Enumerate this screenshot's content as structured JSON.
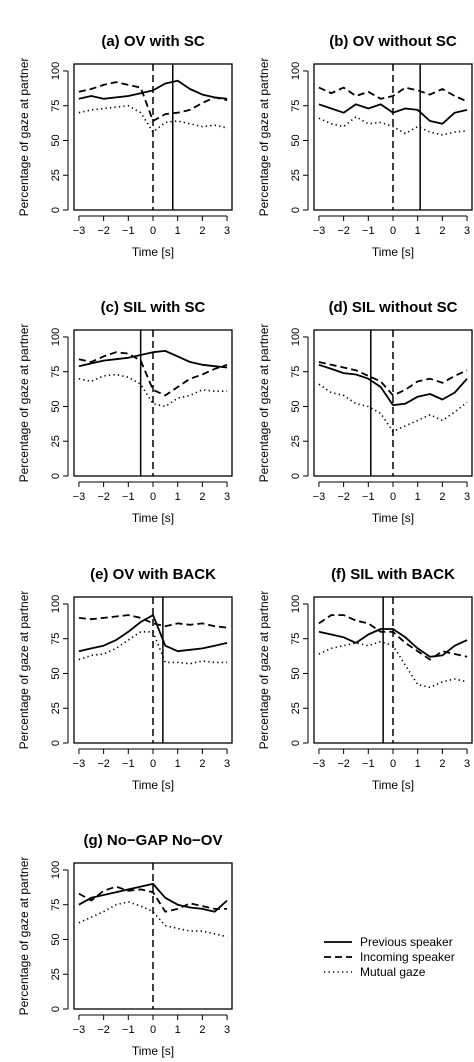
{
  "legend": [
    {
      "label": "Previous speaker",
      "style": "solid"
    },
    {
      "label": "Incoming speaker",
      "style": "dashed"
    },
    {
      "label": "Mutual gaze",
      "style": "dotted"
    }
  ],
  "chart_data": [
    {
      "type": "line",
      "title": "(a) OV with SC",
      "xlabel": "Time [s]",
      "ylabel": "Percentage of gaze at partner",
      "xlim": [
        -3.2,
        3.2
      ],
      "ylim": [
        0,
        105
      ],
      "xticks": [
        -3,
        -2,
        -1,
        0,
        1,
        2,
        3
      ],
      "yticks": [
        0,
        25,
        50,
        75,
        100
      ],
      "event_lines": [
        {
          "x": 0,
          "style": "dashed"
        },
        {
          "x": 0.8,
          "style": "solid"
        }
      ],
      "x": [
        -3,
        -2.5,
        -2,
        -1.5,
        -1,
        -0.5,
        0,
        0.5,
        1,
        1.5,
        2,
        2.5,
        3
      ],
      "series": [
        {
          "name": "Previous speaker",
          "style": "solid",
          "values": [
            80,
            82,
            80,
            81,
            82,
            84,
            86,
            91,
            93,
            87,
            83,
            81,
            80
          ]
        },
        {
          "name": "Incoming speaker",
          "style": "dashed",
          "values": [
            85,
            87,
            90,
            92,
            90,
            88,
            64,
            69,
            70,
            72,
            77,
            81,
            79
          ]
        },
        {
          "name": "Mutual gaze",
          "style": "dotted",
          "values": [
            70,
            72,
            73,
            74,
            75,
            70,
            56,
            63,
            64,
            62,
            60,
            61,
            59
          ]
        }
      ]
    },
    {
      "type": "line",
      "title": "(b) OV without SC",
      "xlabel": "Time [s]",
      "ylabel": "Percentage of gaze at partner",
      "xlim": [
        -3.2,
        3.2
      ],
      "ylim": [
        0,
        105
      ],
      "xticks": [
        -3,
        -2,
        -1,
        0,
        1,
        2,
        3
      ],
      "yticks": [
        0,
        25,
        50,
        75,
        100
      ],
      "event_lines": [
        {
          "x": 0,
          "style": "dashed"
        },
        {
          "x": 1.1,
          "style": "solid"
        }
      ],
      "x": [
        -3,
        -2.5,
        -2,
        -1.5,
        -1,
        -0.5,
        0,
        0.5,
        1,
        1.5,
        2,
        2.5,
        3
      ],
      "series": [
        {
          "name": "Previous speaker",
          "style": "solid",
          "values": [
            76,
            73,
            70,
            76,
            73,
            76,
            70,
            73,
            72,
            64,
            62,
            70,
            72
          ]
        },
        {
          "name": "Incoming speaker",
          "style": "dashed",
          "values": [
            88,
            84,
            88,
            82,
            85,
            80,
            82,
            88,
            86,
            83,
            87,
            82,
            78
          ]
        },
        {
          "name": "Mutual gaze",
          "style": "dotted",
          "values": [
            66,
            62,
            60,
            67,
            62,
            63,
            60,
            55,
            60,
            56,
            54,
            56,
            57
          ]
        }
      ]
    },
    {
      "type": "line",
      "title": "(c) SIL with SC",
      "xlabel": "Time [s]",
      "ylabel": "Percentage of gaze at partner",
      "xlim": [
        -3.2,
        3.2
      ],
      "ylim": [
        0,
        105
      ],
      "xticks": [
        -3,
        -2,
        -1,
        0,
        1,
        2,
        3
      ],
      "yticks": [
        0,
        25,
        50,
        75,
        100
      ],
      "event_lines": [
        {
          "x": -0.5,
          "style": "solid"
        },
        {
          "x": 0,
          "style": "dashed"
        }
      ],
      "x": [
        -3,
        -2.5,
        -2,
        -1.5,
        -1,
        -0.5,
        0,
        0.5,
        1,
        1.5,
        2,
        2.5,
        3
      ],
      "series": [
        {
          "name": "Previous speaker",
          "style": "solid",
          "values": [
            79,
            81,
            83,
            84,
            85,
            87,
            89,
            90,
            86,
            82,
            80,
            79,
            78
          ]
        },
        {
          "name": "Incoming speaker",
          "style": "dashed",
          "values": [
            84,
            82,
            86,
            89,
            88,
            83,
            62,
            58,
            64,
            70,
            73,
            77,
            80
          ]
        },
        {
          "name": "Mutual gaze",
          "style": "dotted",
          "values": [
            70,
            68,
            72,
            73,
            71,
            66,
            52,
            50,
            56,
            58,
            62,
            61,
            61
          ]
        }
      ]
    },
    {
      "type": "line",
      "title": "(d) SIL without SC",
      "xlabel": "Time [s]",
      "ylabel": "Percentage of gaze at partner",
      "xlim": [
        -3.2,
        3.2
      ],
      "ylim": [
        0,
        105
      ],
      "xticks": [
        -3,
        -2,
        -1,
        0,
        1,
        2,
        3
      ],
      "yticks": [
        0,
        25,
        50,
        75,
        100
      ],
      "event_lines": [
        {
          "x": -0.9,
          "style": "solid"
        },
        {
          "x": 0,
          "style": "dashed"
        }
      ],
      "x": [
        -3,
        -2.5,
        -2,
        -1.5,
        -1,
        -0.5,
        0,
        0.5,
        1,
        1.5,
        2,
        2.5,
        3
      ],
      "series": [
        {
          "name": "Previous speaker",
          "style": "solid",
          "values": [
            80,
            77,
            74,
            73,
            70,
            64,
            51,
            52,
            57,
            59,
            55,
            60,
            70
          ]
        },
        {
          "name": "Incoming speaker",
          "style": "dashed",
          "values": [
            82,
            80,
            78,
            76,
            72,
            68,
            58,
            62,
            68,
            70,
            67,
            72,
            76
          ]
        },
        {
          "name": "Mutual gaze",
          "style": "dotted",
          "values": [
            66,
            60,
            58,
            52,
            50,
            45,
            32,
            36,
            40,
            44,
            40,
            46,
            53
          ]
        }
      ]
    },
    {
      "type": "line",
      "title": "(e) OV with BACK",
      "xlabel": "Time [s]",
      "ylabel": "Percentage of gaze at partner",
      "xlim": [
        -3.2,
        3.2
      ],
      "ylim": [
        0,
        105
      ],
      "xticks": [
        -3,
        -2,
        -1,
        0,
        1,
        2,
        3
      ],
      "yticks": [
        0,
        25,
        50,
        75,
        100
      ],
      "event_lines": [
        {
          "x": 0,
          "style": "dashed"
        },
        {
          "x": 0.4,
          "style": "solid"
        }
      ],
      "x": [
        -3,
        -2.5,
        -2,
        -1.5,
        -1,
        -0.5,
        0,
        0.5,
        1,
        1.5,
        2,
        2.5,
        3
      ],
      "series": [
        {
          "name": "Previous speaker",
          "style": "solid",
          "values": [
            66,
            68,
            70,
            74,
            80,
            87,
            92,
            70,
            66,
            67,
            68,
            70,
            72
          ]
        },
        {
          "name": "Incoming speaker",
          "style": "dashed",
          "values": [
            90,
            89,
            90,
            91,
            92,
            90,
            86,
            84,
            86,
            85,
            86,
            84,
            83
          ]
        },
        {
          "name": "Mutual gaze",
          "style": "dotted",
          "values": [
            60,
            63,
            64,
            68,
            74,
            80,
            80,
            58,
            58,
            57,
            59,
            58,
            58
          ]
        }
      ]
    },
    {
      "type": "line",
      "title": "(f) SIL with BACK",
      "xlabel": "Time [s]",
      "ylabel": "Percentage of gaze at partner",
      "xlim": [
        -3.2,
        3.2
      ],
      "ylim": [
        0,
        105
      ],
      "xticks": [
        -3,
        -2,
        -1,
        0,
        1,
        2,
        3
      ],
      "yticks": [
        0,
        25,
        50,
        75,
        100
      ],
      "event_lines": [
        {
          "x": -0.4,
          "style": "solid"
        },
        {
          "x": 0,
          "style": "dashed"
        }
      ],
      "x": [
        -3,
        -2.5,
        -2,
        -1.5,
        -1,
        -0.5,
        0,
        0.5,
        1,
        1.5,
        2,
        2.5,
        3
      ],
      "series": [
        {
          "name": "Previous speaker",
          "style": "solid",
          "values": [
            80,
            78,
            76,
            72,
            78,
            82,
            82,
            76,
            68,
            62,
            63,
            70,
            74
          ]
        },
        {
          "name": "Incoming speaker",
          "style": "dashed",
          "values": [
            86,
            92,
            92,
            88,
            86,
            80,
            80,
            72,
            66,
            60,
            66,
            64,
            62
          ]
        },
        {
          "name": "Mutual gaze",
          "style": "dotted",
          "values": [
            64,
            68,
            70,
            72,
            70,
            73,
            70,
            56,
            42,
            40,
            44,
            46,
            44
          ]
        }
      ]
    },
    {
      "type": "line",
      "title": "(g) No−GAP No−OV",
      "xlabel": "Time [s]",
      "ylabel": "Percentage of gaze at partner",
      "xlim": [
        -3.2,
        3.2
      ],
      "ylim": [
        0,
        105
      ],
      "xticks": [
        -3,
        -2,
        -1,
        0,
        1,
        2,
        3
      ],
      "yticks": [
        0,
        25,
        50,
        75,
        100
      ],
      "event_lines": [
        {
          "x": 0,
          "style": "dashed"
        }
      ],
      "x": [
        -3,
        -2.5,
        -2,
        -1.5,
        -1,
        -0.5,
        0,
        0.5,
        1,
        1.5,
        2,
        2.5,
        3
      ],
      "series": [
        {
          "name": "Previous speaker",
          "style": "solid",
          "values": [
            75,
            80,
            82,
            84,
            86,
            88,
            90,
            80,
            75,
            73,
            72,
            70,
            78
          ]
        },
        {
          "name": "Incoming speaker",
          "style": "dashed",
          "values": [
            83,
            78,
            85,
            88,
            85,
            86,
            84,
            70,
            72,
            76,
            74,
            72,
            72
          ]
        },
        {
          "name": "Mutual gaze",
          "style": "dotted",
          "values": [
            62,
            66,
            70,
            75,
            77,
            74,
            70,
            60,
            58,
            56,
            56,
            54,
            52
          ]
        }
      ]
    }
  ]
}
